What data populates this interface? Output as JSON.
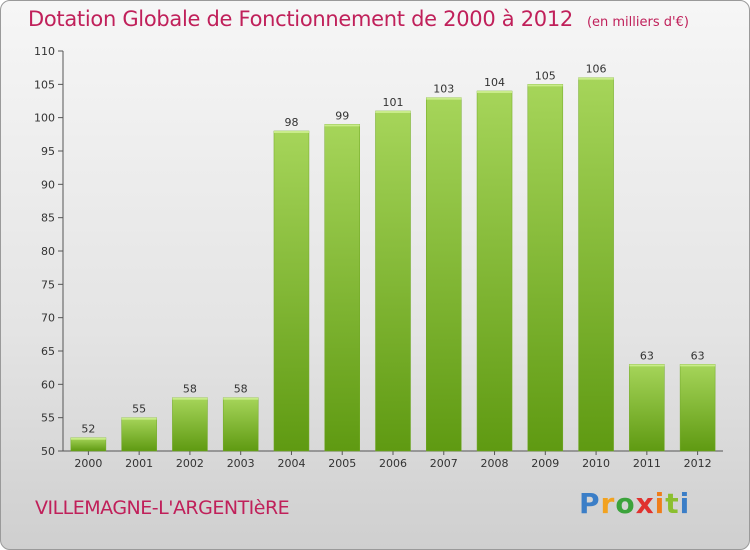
{
  "header": {
    "title": "Dotation Globale de Fonctionnement de 2000 à 2012",
    "unit": "(en milliers d'€)"
  },
  "footer": {
    "commune": "VILLEMAGNE-L'ARGENTIèRE",
    "logo": [
      "P",
      "r",
      "o",
      "x",
      "i",
      "t",
      "i"
    ]
  },
  "colors": {
    "title": "#c0205a",
    "bar_top": "#a6d55a",
    "bar_bottom": "#5f9a12"
  },
  "chart_data": {
    "type": "bar",
    "title": "Dotation Globale de Fonctionnement de 2000 à 2012",
    "xlabel": "",
    "ylabel": "",
    "categories": [
      "2000",
      "2001",
      "2002",
      "2003",
      "2004",
      "2005",
      "2006",
      "2007",
      "2008",
      "2009",
      "2010",
      "2011",
      "2012"
    ],
    "values": [
      52,
      55,
      58,
      58,
      98,
      99,
      101,
      103,
      104,
      105,
      106,
      63,
      63
    ],
    "ylim": [
      50,
      110
    ],
    "yticks": [
      50,
      55,
      60,
      65,
      70,
      75,
      80,
      85,
      90,
      95,
      100,
      105,
      110
    ],
    "grid": false,
    "legend": "none"
  }
}
